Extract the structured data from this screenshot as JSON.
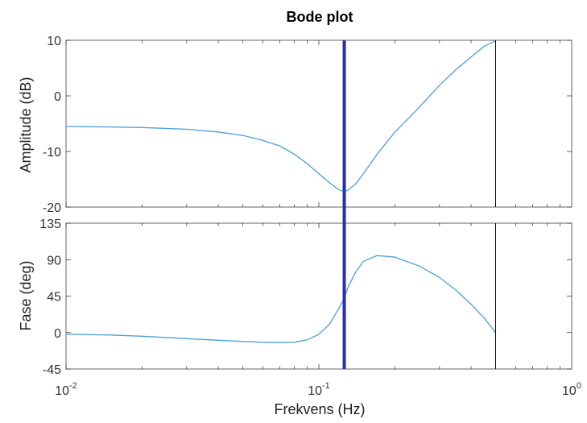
{
  "chart_data": {
    "title": "Bode plot",
    "xlabel": "Frekvens  (Hz)",
    "x_scale": "log",
    "xlim": [
      0.01,
      1
    ],
    "x_ticks": [
      {
        "value": 0.01,
        "base": "10",
        "exp": "-2"
      },
      {
        "value": 0.1,
        "base": "10",
        "exp": "-1"
      },
      {
        "value": 1,
        "base": "10",
        "exp": "0"
      }
    ],
    "marker_line": {
      "x": 0.126,
      "color": "#2b2bb8"
    },
    "end_line": {
      "x": 0.5,
      "color": "#000000"
    },
    "grid": false,
    "series_color": "#4a9fd8",
    "charts": [
      {
        "type": "line",
        "ylabel": "Amplitude (dB)",
        "ylim": [
          -20,
          10
        ],
        "yticks": [
          "-20",
          "-10",
          "0",
          "10"
        ],
        "ytick_values": [
          -20,
          -10,
          0,
          10
        ],
        "x": [
          0.01,
          0.015,
          0.02,
          0.03,
          0.04,
          0.05,
          0.06,
          0.07,
          0.08,
          0.09,
          0.1,
          0.11,
          0.12,
          0.126,
          0.13,
          0.14,
          0.15,
          0.17,
          0.2,
          0.25,
          0.3,
          0.35,
          0.4,
          0.45,
          0.5
        ],
        "y": [
          -5.5,
          -5.6,
          -5.7,
          -6.0,
          -6.5,
          -7.1,
          -8.0,
          -9.0,
          -10.5,
          -12.2,
          -14.0,
          -15.6,
          -16.9,
          -17.2,
          -17.0,
          -15.8,
          -14.0,
          -10.5,
          -6.5,
          -2.0,
          1.9,
          4.8,
          7.0,
          8.9,
          9.9
        ]
      },
      {
        "type": "line",
        "ylabel": "Fase (deg)",
        "ylim": [
          -45,
          135
        ],
        "yticks": [
          "-45",
          "0",
          "45",
          "90",
          "135"
        ],
        "ytick_values": [
          -45,
          0,
          45,
          90,
          135
        ],
        "x": [
          0.01,
          0.015,
          0.02,
          0.03,
          0.04,
          0.05,
          0.06,
          0.07,
          0.08,
          0.09,
          0.1,
          0.11,
          0.12,
          0.126,
          0.13,
          0.14,
          0.15,
          0.17,
          0.2,
          0.25,
          0.3,
          0.35,
          0.4,
          0.45,
          0.5
        ],
        "y": [
          -2,
          -3,
          -4.5,
          -7.5,
          -9.5,
          -11,
          -12,
          -12.5,
          -12,
          -9,
          -2,
          10,
          30,
          42,
          55,
          75,
          88,
          95,
          93,
          82,
          68,
          52,
          35,
          18,
          0
        ]
      }
    ]
  }
}
